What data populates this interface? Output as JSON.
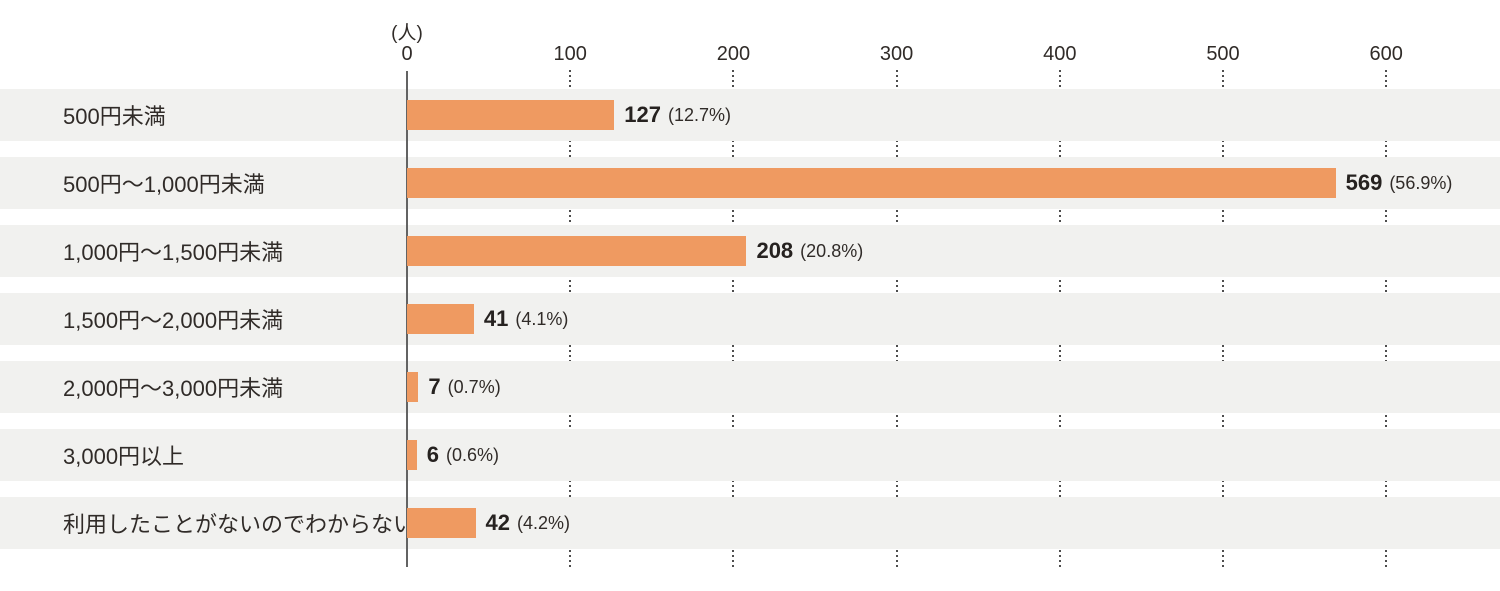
{
  "chart_data": {
    "type": "bar",
    "orientation": "horizontal",
    "title": "",
    "unit_label": "(人)",
    "categories": [
      "500円未満",
      "500円〜1,000円未満",
      "1,000円〜1,500円未満",
      "1,500円〜2,000円未満",
      "2,000円〜3,000円未満",
      "3,000円以上",
      "利用したことがないのでわからない"
    ],
    "values": [
      127,
      569,
      208,
      41,
      7,
      6,
      42
    ],
    "percent_labels": [
      "(12.7%)",
      "(56.9%)",
      "(20.8%)",
      "(4.1%)",
      "(0.7%)",
      "(0.6%)",
      "(4.2%)"
    ],
    "x_ticks": [
      0,
      100,
      200,
      300,
      400,
      500,
      600
    ],
    "xlim": [
      0,
      670
    ],
    "xlabel": "",
    "ylabel": "",
    "grid": "dotted-vertical-in-row-gaps",
    "legend": "none",
    "colors": {
      "bar": "#ef9a61",
      "row_band": "#f1f1ef",
      "text": "#302b28",
      "value_text": "#262220",
      "axis_line": "#636363",
      "grid_dots": "#4d4d4d",
      "background": "#ffffff"
    }
  }
}
